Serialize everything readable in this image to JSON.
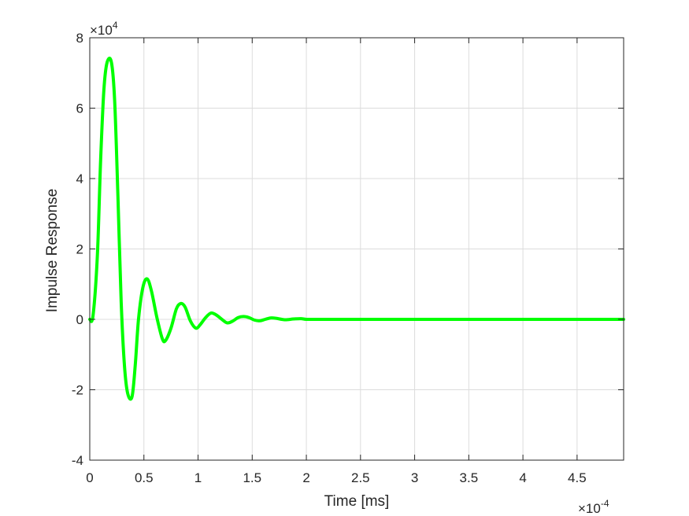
{
  "chart_data": {
    "type": "line",
    "title": "",
    "xlabel": "Time [ms]",
    "ylabel": "Impulse Response",
    "x_exponent_label": "×10",
    "x_exponent_power": "-4",
    "y_exponent_label": "×10",
    "y_exponent_power": "4",
    "xlim": [
      0,
      4.93
    ],
    "ylim": [
      -4,
      8
    ],
    "x_ticks": [
      0,
      0.5,
      1,
      1.5,
      2,
      2.5,
      3,
      3.5,
      4,
      4.5
    ],
    "x_tick_labels": [
      "0",
      "0.5",
      "1",
      "1.5",
      "2",
      "2.5",
      "3",
      "3.5",
      "4",
      "4.5"
    ],
    "y_ticks": [
      -4,
      -2,
      0,
      2,
      4,
      6,
      8
    ],
    "y_tick_labels": [
      "-4",
      "-2",
      "0",
      "2",
      "4",
      "6",
      "8"
    ],
    "grid": true,
    "legend": "none",
    "series_color": "#00ff00",
    "series": [
      {
        "x": [
          0,
          0.03,
          0.07,
          0.1,
          0.13,
          0.16,
          0.2,
          0.23,
          0.26,
          0.29,
          0.32,
          0.35,
          0.39,
          0.42,
          0.45,
          0.49,
          0.53,
          0.57,
          0.62,
          0.67,
          0.7,
          0.75,
          0.8,
          0.84,
          0.88,
          0.93,
          0.98,
          1.02,
          1.07,
          1.12,
          1.17,
          1.22,
          1.27,
          1.32,
          1.37,
          1.42,
          1.47,
          1.52,
          1.57,
          1.62,
          1.67,
          1.72,
          1.8,
          1.88,
          1.95,
          2.0,
          2.1,
          2.2,
          2.3,
          2.5,
          3.0,
          3.5,
          4.0,
          4.5,
          4.93
        ],
        "y": [
          0,
          0.1,
          1.8,
          4.5,
          6.5,
          7.3,
          7.3,
          6.2,
          3.5,
          0.5,
          -1.3,
          -2.1,
          -2.2,
          -1.3,
          0,
          0.9,
          1.15,
          0.8,
          0.05,
          -0.55,
          -0.6,
          -0.25,
          0.3,
          0.45,
          0.35,
          -0.05,
          -0.25,
          -0.15,
          0.05,
          0.18,
          0.12,
          0,
          -0.1,
          -0.05,
          0.05,
          0.08,
          0.05,
          -0.02,
          -0.04,
          0.0,
          0.04,
          0.03,
          -0.01,
          0.01,
          0.02,
          0.0,
          0.0,
          0.0,
          0.0,
          0.0,
          0.0,
          0.0,
          0.0,
          0.0,
          0.0
        ]
      }
    ]
  }
}
